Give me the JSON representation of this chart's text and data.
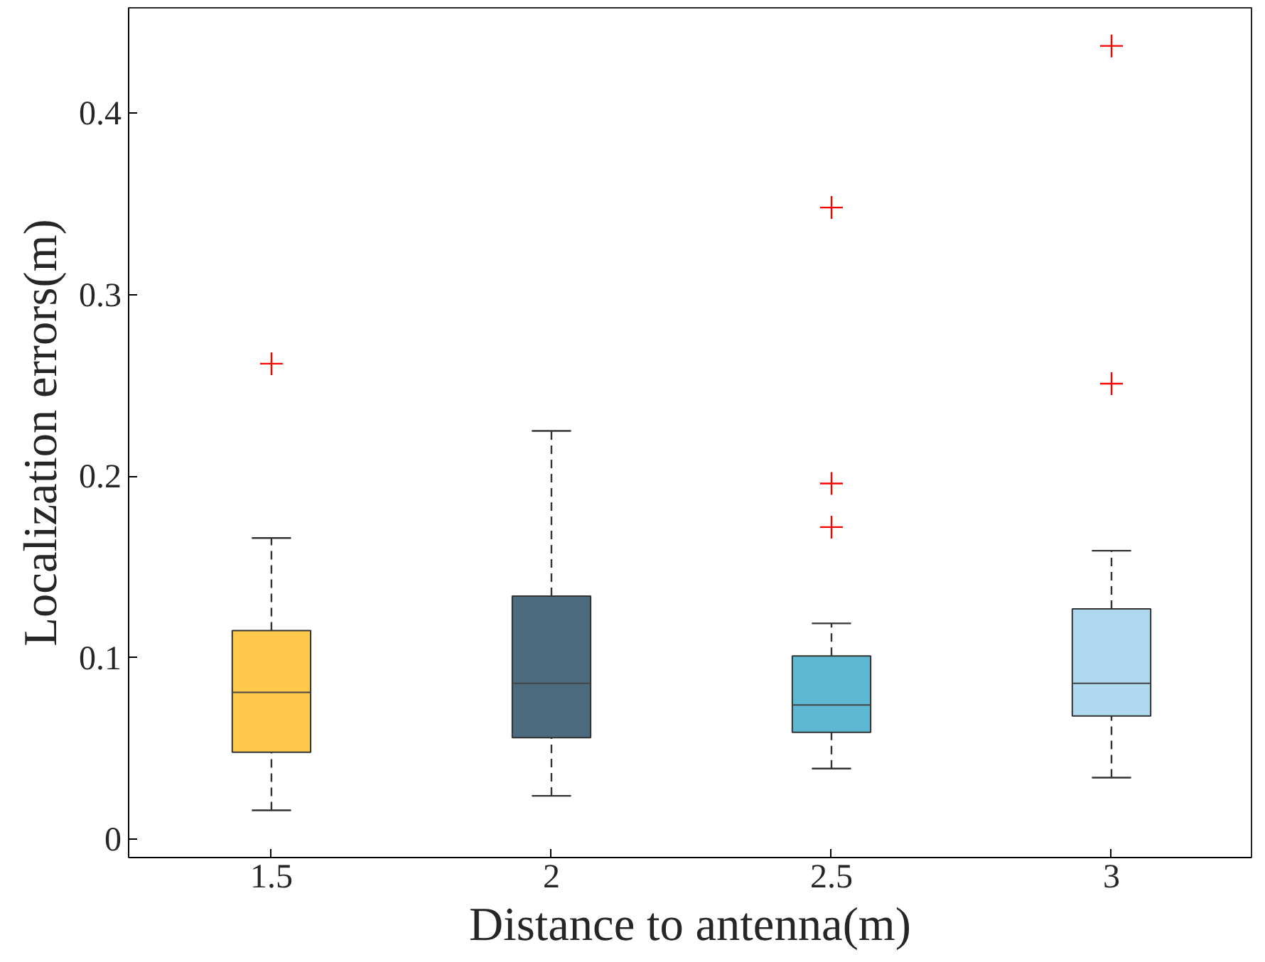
{
  "chart_data": {
    "type": "box",
    "xlabel": "Distance to antenna(m)",
    "ylabel": "Localization errors(m)",
    "categories": [
      "1.5",
      "2",
      "2.5",
      "3"
    ],
    "colors": [
      "#ffc94b",
      "#4d6b7f",
      "#5eb8d1",
      "#aed8ee"
    ],
    "boxes": [
      {
        "low": 0.016,
        "q1": 0.048,
        "median": 0.081,
        "q3": 0.115,
        "high": 0.166,
        "outliers": [
          0.262
        ]
      },
      {
        "low": 0.024,
        "q1": 0.056,
        "median": 0.086,
        "q3": 0.134,
        "high": 0.225
      },
      {
        "low": 0.039,
        "q1": 0.059,
        "median": 0.074,
        "q3": 0.101,
        "high": 0.119,
        "outliers": [
          0.348,
          0.196,
          0.172
        ]
      },
      {
        "low": 0.034,
        "q1": 0.068,
        "median": 0.086,
        "q3": 0.127,
        "high": 0.159,
        "outliers": [
          0.437,
          0.251
        ]
      }
    ],
    "ylim": [
      -0.01,
      0.458
    ],
    "yticks": [
      0,
      0.1,
      0.2,
      0.3,
      0.4
    ],
    "grid": false,
    "marker": "cross"
  }
}
